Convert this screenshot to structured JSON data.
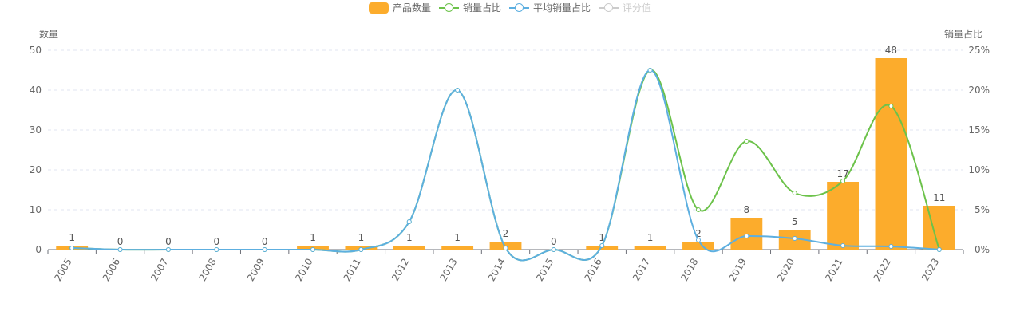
{
  "legend": [
    {
      "label": "产品数量",
      "color": "#FCAC2C",
      "kind": "bar",
      "active": true
    },
    {
      "label": "销量占比",
      "color": "#6CC24A",
      "kind": "line",
      "active": true
    },
    {
      "label": "平均销量占比",
      "color": "#5DAFE0",
      "kind": "line",
      "active": true
    },
    {
      "label": "评分值",
      "color": "#cccccc",
      "kind": "line",
      "active": false
    }
  ],
  "chart_data": {
    "type": "bar",
    "categories": [
      "2005",
      "2006",
      "2007",
      "2008",
      "2009",
      "2010",
      "2011",
      "2012",
      "2013",
      "2014",
      "2015",
      "2016",
      "2017",
      "2018",
      "2019",
      "2020",
      "2021",
      "2022",
      "2023"
    ],
    "series": [
      {
        "name": "产品数量",
        "type": "bar",
        "axis": "left",
        "color": "#FCAC2C",
        "values": [
          1,
          0,
          0,
          0,
          0,
          1,
          1,
          1,
          1,
          2,
          0,
          1,
          1,
          2,
          8,
          5,
          17,
          48,
          11
        ]
      },
      {
        "name": "销量占比",
        "type": "line",
        "axis": "right",
        "color": "#6CC24A",
        "values": [
          0.2,
          0,
          0,
          0,
          0,
          0,
          0,
          3.5,
          20,
          0.2,
          0,
          0.5,
          22.5,
          5,
          13.6,
          7.1,
          8.6,
          18,
          0
        ]
      },
      {
        "name": "平均销量占比",
        "type": "line",
        "axis": "right",
        "color": "#5DAFE0",
        "values": [
          0.2,
          0,
          0,
          0,
          0,
          0,
          0,
          3.5,
          20,
          0.2,
          0,
          0.5,
          22.5,
          1.2,
          1.7,
          1.4,
          0.5,
          0.4,
          0
        ]
      }
    ],
    "y_left": {
      "label": "数量",
      "min": 0,
      "max": 50,
      "ticks": [
        0,
        10,
        20,
        30,
        40,
        50
      ]
    },
    "y_right": {
      "label": "销量占比",
      "min": 0,
      "max": 25,
      "ticks": [
        "0%",
        "5%",
        "10%",
        "15%",
        "20%",
        "25%"
      ]
    },
    "grid": true,
    "legend_position": "top-center",
    "x_label_rotation": -60
  }
}
